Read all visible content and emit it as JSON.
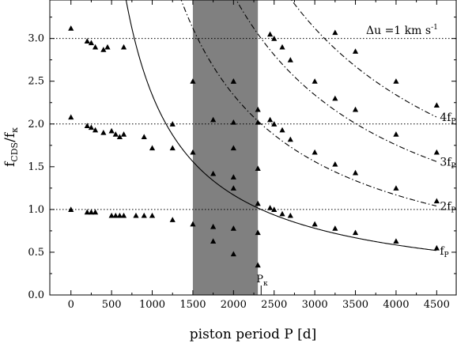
{
  "chart_data": {
    "type": "scatter",
    "xlabel": "piston period P [d]",
    "ylabel_main": "f",
    "ylabel_sub": "CDS",
    "ylabel_tail": "/f",
    "ylabel_kappa": "κ",
    "annotation": "Δu =1 km  s",
    "annotation_exp": "-1",
    "pk_label": "P",
    "pk_sub": "κ",
    "pk_x": 2340,
    "xlim": [
      -260,
      4740
    ],
    "ylim": [
      0.0,
      3.45
    ],
    "xticks": [
      0,
      500,
      1000,
      1500,
      2000,
      2500,
      3000,
      3500,
      4000,
      4500
    ],
    "xtick_labels": [
      "0",
      "500",
      "1000",
      "1500",
      "2000",
      "2500",
      "3000",
      "3500",
      "4000",
      "4500"
    ],
    "yticks": [
      0.0,
      0.5,
      1.0,
      1.5,
      2.0,
      2.5,
      3.0
    ],
    "ytick_labels": [
      "0.0",
      "0.5",
      "1.0",
      "1.5",
      "2.0",
      "2.5",
      "3.0"
    ],
    "reference_lines": [
      1.0,
      2.0,
      3.0
    ],
    "shaded_band": [
      1500,
      2300
    ],
    "curve_constant": 2340,
    "curves": [
      {
        "multiplier": 1,
        "style": "solid",
        "label_main": "f",
        "label_sub": "P"
      },
      {
        "multiplier": 2,
        "style": "dashdot",
        "label_main": "2f",
        "label_sub": "P"
      },
      {
        "multiplier": 3,
        "style": "dashdot",
        "label_main": "3f",
        "label_sub": "P"
      },
      {
        "multiplier": 4,
        "style": "dashdot",
        "label_main": "4f",
        "label_sub": "P"
      }
    ],
    "points": [
      [
        0,
        1.0
      ],
      [
        200,
        0.97
      ],
      [
        250,
        0.97
      ],
      [
        300,
        0.97
      ],
      [
        500,
        0.93
      ],
      [
        550,
        0.93
      ],
      [
        600,
        0.93
      ],
      [
        650,
        0.93
      ],
      [
        800,
        0.93
      ],
      [
        900,
        0.93
      ],
      [
        1000,
        0.93
      ],
      [
        1250,
        0.88
      ],
      [
        0,
        2.08
      ],
      [
        200,
        1.98
      ],
      [
        250,
        1.96
      ],
      [
        300,
        1.93
      ],
      [
        400,
        1.9
      ],
      [
        500,
        1.92
      ],
      [
        550,
        1.88
      ],
      [
        600,
        1.85
      ],
      [
        650,
        1.88
      ],
      [
        900,
        1.85
      ],
      [
        1000,
        1.72
      ],
      [
        1250,
        1.72
      ],
      [
        0,
        3.12
      ],
      [
        200,
        2.97
      ],
      [
        250,
        2.95
      ],
      [
        300,
        2.9
      ],
      [
        400,
        2.87
      ],
      [
        450,
        2.9
      ],
      [
        650,
        2.9
      ],
      [
        1500,
        2.5
      ],
      [
        1500,
        0.83
      ],
      [
        1750,
        2.05
      ],
      [
        1750,
        0.8
      ],
      [
        1750,
        0.63
      ],
      [
        2000,
        2.5
      ],
      [
        2000,
        2.02
      ],
      [
        2000,
        1.72
      ],
      [
        2000,
        1.38
      ],
      [
        2000,
        0.78
      ],
      [
        2000,
        0.48
      ],
      [
        2300,
        2.02
      ],
      [
        2300,
        1.48
      ],
      [
        2300,
        0.73
      ],
      [
        2300,
        0.35
      ],
      [
        1500,
        1.67
      ],
      [
        1750,
        1.42
      ],
      [
        2000,
        1.25
      ],
      [
        2300,
        1.07
      ],
      [
        2450,
        1.02
      ],
      [
        2500,
        1.0
      ],
      [
        2600,
        0.95
      ],
      [
        2700,
        0.93
      ],
      [
        3000,
        0.83
      ],
      [
        3250,
        0.78
      ],
      [
        3500,
        0.73
      ],
      [
        4000,
        0.63
      ],
      [
        4500,
        0.55
      ],
      [
        1250,
        2.0
      ],
      [
        2000,
        2.5
      ],
      [
        2300,
        2.17
      ],
      [
        2450,
        2.05
      ],
      [
        2500,
        2.0
      ],
      [
        2600,
        1.93
      ],
      [
        2700,
        1.82
      ],
      [
        3000,
        1.67
      ],
      [
        3250,
        1.53
      ],
      [
        3500,
        1.43
      ],
      [
        4000,
        1.25
      ],
      [
        4500,
        1.1
      ],
      [
        2450,
        3.05
      ],
      [
        2500,
        3.0
      ],
      [
        2600,
        2.9
      ],
      [
        2700,
        2.75
      ],
      [
        3000,
        2.5
      ],
      [
        3250,
        2.3
      ],
      [
        3500,
        2.17
      ],
      [
        4000,
        1.88
      ],
      [
        4500,
        1.67
      ],
      [
        3250,
        3.07
      ],
      [
        3500,
        2.85
      ],
      [
        4000,
        2.5
      ],
      [
        4500,
        2.22
      ]
    ]
  }
}
